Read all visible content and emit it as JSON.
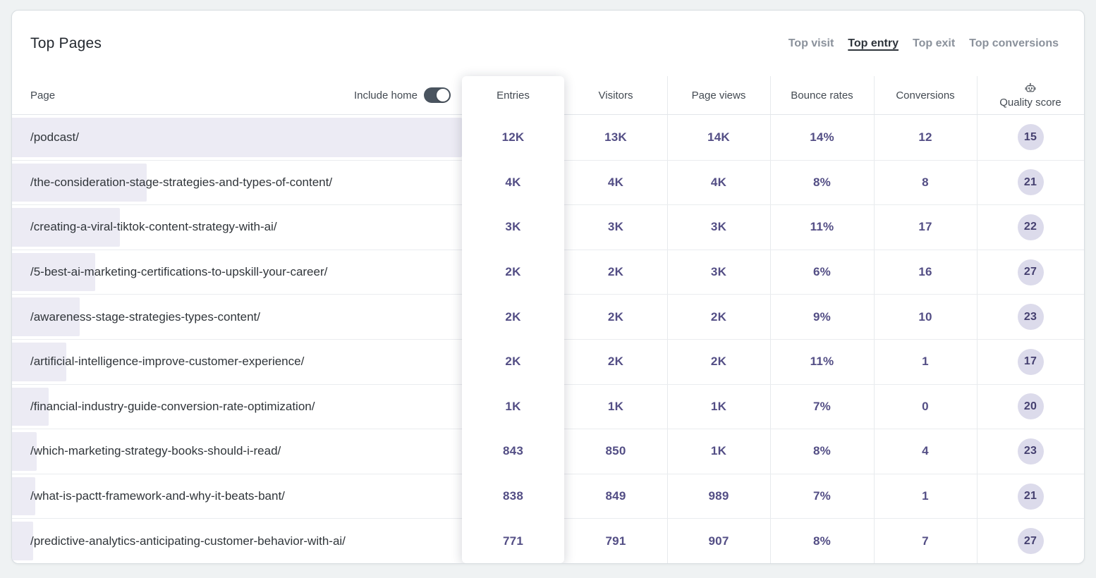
{
  "header": {
    "title": "Top Pages",
    "tabs": [
      {
        "label": "Top visit",
        "active": false
      },
      {
        "label": "Top entry",
        "active": true
      },
      {
        "label": "Top exit",
        "active": false
      },
      {
        "label": "Top conversions",
        "active": false
      }
    ]
  },
  "table": {
    "page_header": "Page",
    "include_home_label": "Include home",
    "include_home_on": true,
    "columns": [
      "Entries",
      "Visitors",
      "Page views",
      "Bounce rates",
      "Conversions",
      "Quality score"
    ],
    "quality_score_icon": "robot-icon",
    "rows": [
      {
        "page": "/podcast/",
        "bar_pct": 100,
        "entries": "12K",
        "visitors": "13K",
        "page_views": "14K",
        "bounce_rate": "14%",
        "conversions": "12",
        "quality_score": "15"
      },
      {
        "page": "/the-consideration-stage-strategies-and-types-of-content/",
        "bar_pct": 30,
        "entries": "4K",
        "visitors": "4K",
        "page_views": "4K",
        "bounce_rate": "8%",
        "conversions": "8",
        "quality_score": "21"
      },
      {
        "page": "/creating-a-viral-tiktok-content-strategy-with-ai/",
        "bar_pct": 24,
        "entries": "3K",
        "visitors": "3K",
        "page_views": "3K",
        "bounce_rate": "11%",
        "conversions": "17",
        "quality_score": "22"
      },
      {
        "page": "/5-best-ai-marketing-certifications-to-upskill-your-career/",
        "bar_pct": 18.5,
        "entries": "2K",
        "visitors": "2K",
        "page_views": "3K",
        "bounce_rate": "6%",
        "conversions": "16",
        "quality_score": "27"
      },
      {
        "page": "/awareness-stage-strategies-types-content/",
        "bar_pct": 15,
        "entries": "2K",
        "visitors": "2K",
        "page_views": "2K",
        "bounce_rate": "9%",
        "conversions": "10",
        "quality_score": "23"
      },
      {
        "page": "/artificial-intelligence-improve-customer-experience/",
        "bar_pct": 12,
        "entries": "2K",
        "visitors": "2K",
        "page_views": "2K",
        "bounce_rate": "11%",
        "conversions": "1",
        "quality_score": "17"
      },
      {
        "page": "/financial-industry-guide-conversion-rate-optimization/",
        "bar_pct": 8.2,
        "entries": "1K",
        "visitors": "1K",
        "page_views": "1K",
        "bounce_rate": "7%",
        "conversions": "0",
        "quality_score": "20"
      },
      {
        "page": "/which-marketing-strategy-books-should-i-read/",
        "bar_pct": 5.5,
        "entries": "843",
        "visitors": "850",
        "page_views": "1K",
        "bounce_rate": "8%",
        "conversions": "4",
        "quality_score": "23"
      },
      {
        "page": "/what-is-pactt-framework-and-why-it-beats-bant/",
        "bar_pct": 5.2,
        "entries": "838",
        "visitors": "849",
        "page_views": "989",
        "bounce_rate": "7%",
        "conversions": "1",
        "quality_score": "21"
      },
      {
        "page": "/predictive-analytics-anticipating-customer-behavior-with-ai/",
        "bar_pct": 4.7,
        "entries": "771",
        "visitors": "791",
        "page_views": "907",
        "bounce_rate": "8%",
        "conversions": "7",
        "quality_score": "27"
      }
    ]
  },
  "colors": {
    "value_text": "#534e85",
    "bar_fill": "#ecebf4",
    "badge_bg": "#dcdbeb",
    "toggle_on": "#4a545f",
    "page_background": "#eff2f3",
    "tab_inactive": "#8a919b",
    "tab_active": "#2e343b"
  }
}
